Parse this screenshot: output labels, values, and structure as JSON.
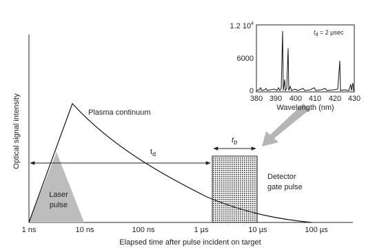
{
  "main_axes": {
    "y_label": "Optical signal intensity",
    "x_label": "Elapsed time after pulse incident on target",
    "x_ticks": [
      "1 ns",
      "10 ns",
      "100 ns",
      "1 µs",
      "10 µs",
      "100 µs"
    ]
  },
  "labels": {
    "plasma": "Plasma continuum",
    "laser_line1": "Laser",
    "laser_line2": "pulse",
    "detector_line1": "Detector",
    "detector_line2": "gate pulse",
    "td": {
      "symbol": "t",
      "subscript": "d"
    },
    "tb": {
      "symbol": "t",
      "subscript": "b"
    }
  },
  "inset": {
    "annotation": {
      "symbol": "t",
      "subscript": "d",
      "rest": " = 2 µsec"
    },
    "y_ticks": [
      {
        "mantissa": "1.2 10",
        "exponent": "4"
      },
      "6000",
      "0"
    ],
    "x_ticks": [
      "380",
      "390",
      "400",
      "410",
      "420",
      "430"
    ],
    "x_label": "Wavelength (nm)"
  }
}
